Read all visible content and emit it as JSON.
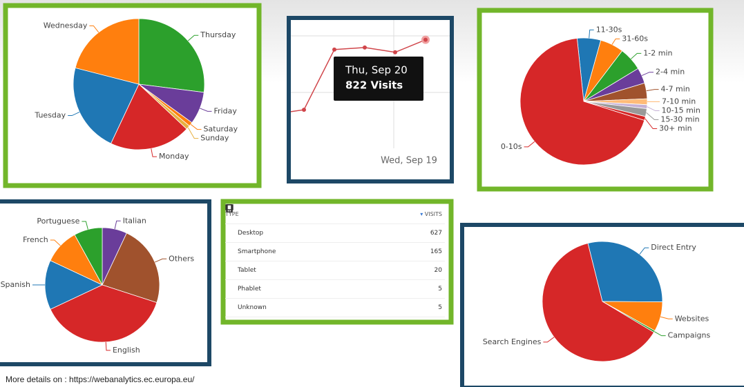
{
  "chart_data": [
    {
      "type": "pie",
      "categories": [
        "Thursday",
        "Friday",
        "Saturday",
        "Sunday",
        "Monday",
        "Tuesday",
        "Wednesday"
      ],
      "values": [
        27,
        8,
        1,
        1,
        20,
        22,
        21
      ],
      "colors": [
        "#2ca02c",
        "#6a3d9a",
        "#ff7f0e",
        "#e8b040",
        "#d62728",
        "#1f77b4",
        "#ff7f0e"
      ]
    },
    {
      "type": "line",
      "categories": [
        null,
        null,
        null,
        null,
        "Wed, Sep 19",
        null
      ],
      "series": [
        {
          "name": "Visits",
          "color": "#d0454a",
          "values": [
            494,
            514,
            779,
            788,
            767,
            822
          ]
        }
      ],
      "ylim": [
        250,
        900
      ],
      "tooltip": {
        "title": "Thu, Sep 20",
        "text": "822 Visits"
      }
    },
    {
      "type": "pie",
      "categories": [
        "11-30s",
        "31-60s",
        "1-2 min",
        "2-4 min",
        "4-7 min",
        "7-10 min",
        "10-15 min",
        "15-30 min",
        "30+ min",
        "0-10s"
      ],
      "values": [
        6,
        6,
        6,
        4,
        4,
        1.5,
        1,
        2,
        1,
        68.5
      ],
      "colors": [
        "#1f77b4",
        "#ff7f0e",
        "#2ca02c",
        "#6a3d9a",
        "#a0522d",
        "#ffbb78",
        "#c5b0d5",
        "#999999",
        "#d62728",
        "#d62728"
      ]
    },
    {
      "type": "pie",
      "categories": [
        "Italian",
        "Others",
        "English",
        "Spanish",
        "French",
        "Portuguese"
      ],
      "values": [
        7,
        23,
        38,
        14,
        10,
        8
      ],
      "colors": [
        "#6a3d9a",
        "#a0522d",
        "#d62728",
        "#1f77b4",
        "#ff7f0e",
        "#2ca02c"
      ]
    },
    {
      "type": "pie",
      "categories": [
        "Direct Entry",
        "Websites",
        "Campaigns",
        "Search Engines"
      ],
      "values": [
        29,
        8,
        0.5,
        62.5
      ],
      "colors": [
        "#1f77b4",
        "#ff7f0e",
        "#2ca02c",
        "#d62728"
      ]
    }
  ],
  "table": {
    "columns": [
      "TYPE",
      "VISITS"
    ],
    "rows": [
      [
        "Desktop",
        627
      ],
      [
        "Smartphone",
        165
      ],
      [
        "Tablet",
        20
      ],
      [
        "Phablet",
        5
      ],
      [
        "Unknown",
        5
      ]
    ]
  },
  "footer": "More details on : https://webanalytics.ec.europa.eu/"
}
